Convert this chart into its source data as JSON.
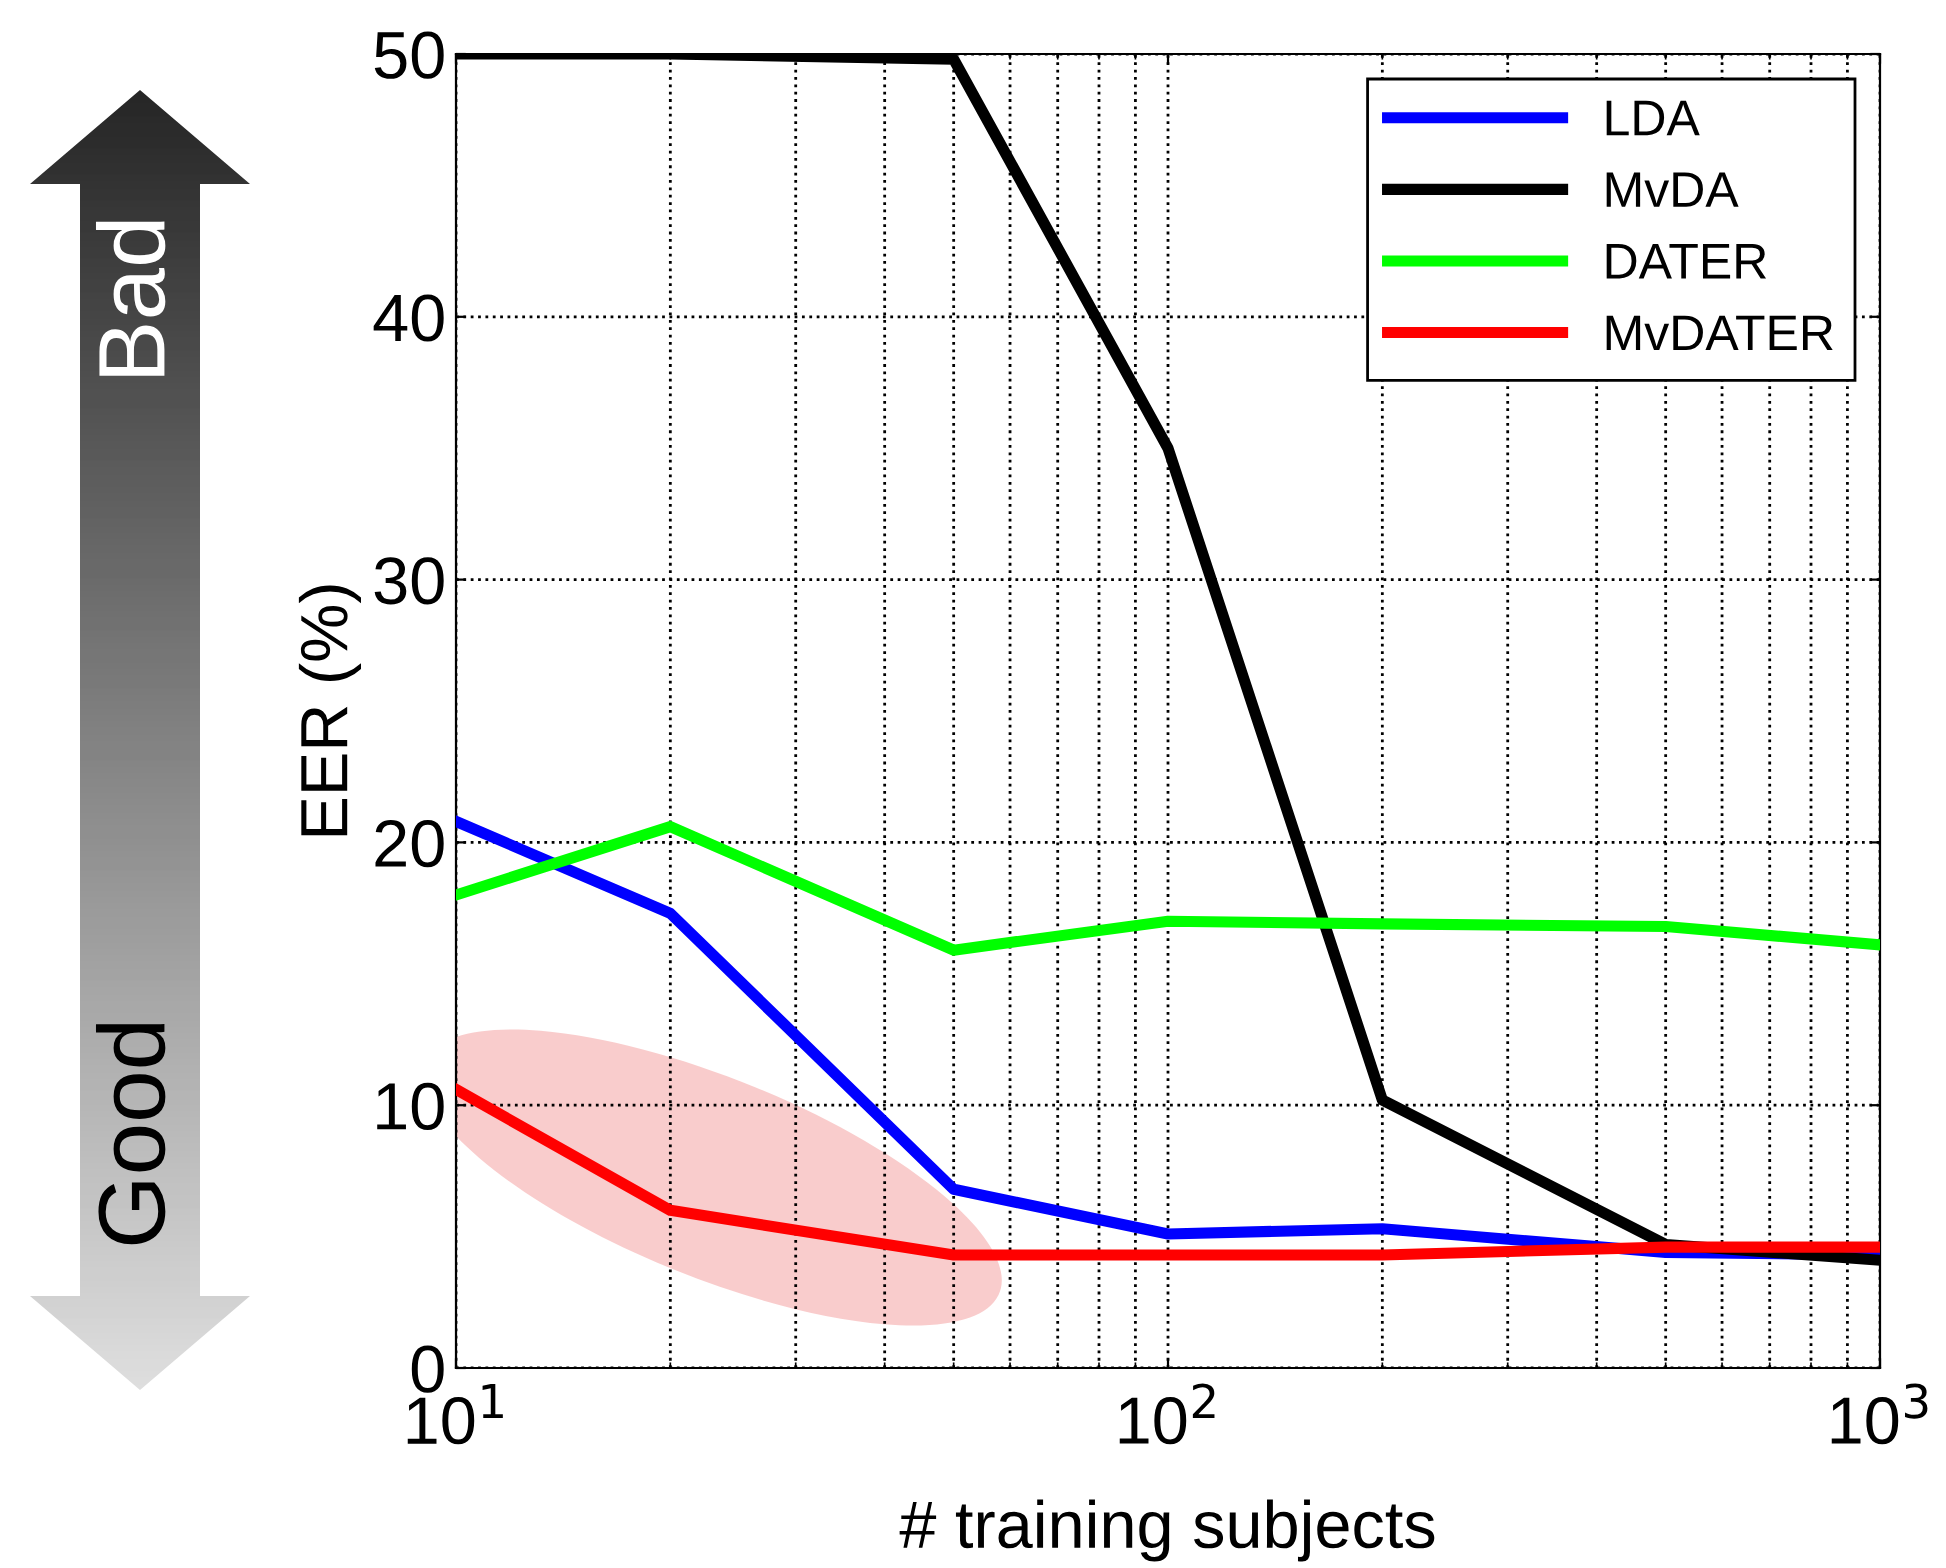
{
  "chart_data": {
    "type": "line",
    "xlabel": "# training subjects",
    "ylabel": "EER (%)",
    "log": "x",
    "xlim": [
      10,
      1000
    ],
    "xticks": [
      {
        "value": 10,
        "label": "10$^{1}$"
      },
      {
        "value": 100,
        "label": "10$^{2}$"
      },
      {
        "value": 1000,
        "label": "10$^{3}$"
      }
    ],
    "ylim": [
      0,
      50
    ],
    "yticks": [
      0,
      10,
      20,
      30,
      40,
      50
    ],
    "grid": true,
    "legend": "top right",
    "line_style": "solid",
    "marker": "none",
    "x": [
      10,
      20,
      50,
      100,
      200,
      500,
      1000
    ],
    "series": [
      {
        "name": "LDA",
        "color": "#0000ff",
        "values": [
          20.8,
          17.3,
          6.8,
          5.1,
          5.3,
          4.4,
          4.3
        ]
      },
      {
        "name": "MvDA",
        "color": "#000000",
        "values": [
          50,
          50,
          49.8,
          35,
          10.2,
          4.7,
          4.1
        ]
      },
      {
        "name": "DATER",
        "color": "#00ff00",
        "values": [
          18.0,
          20.6,
          15.9,
          17.0,
          16.9,
          16.8,
          16.1
        ]
      },
      {
        "name": "MvDATER",
        "color": "#ff0000",
        "values": [
          10.6,
          6.0,
          4.3,
          4.3,
          4.3,
          4.6,
          4.6
        ]
      }
    ],
    "annotations": [
      "Bad",
      "Good"
    ]
  }
}
